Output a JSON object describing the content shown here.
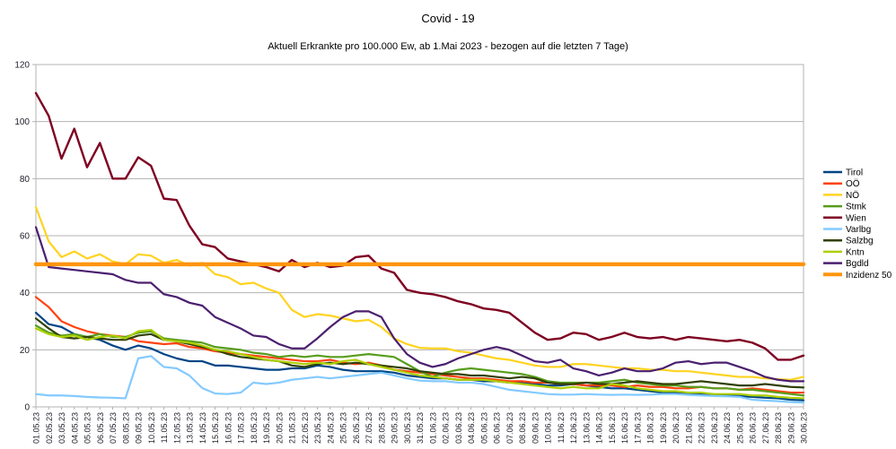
{
  "chart_data": {
    "type": "line",
    "title": "Covid - 19",
    "subtitle": "Aktuell Erkrankte pro 100.000 Ew, ab 1.Mai 2023 - bezogen auf die letzten 7 Tage)",
    "xlabel": "",
    "ylabel": "",
    "ylim": [
      0,
      120
    ],
    "ytick_step": 20,
    "ytick_labels": [
      "0",
      "20",
      "40",
      "60",
      "80",
      "100",
      "120"
    ],
    "grid": "horizontal",
    "legend_position": "right",
    "background_color": "#ffffff",
    "grid_color": "#b3b3b3",
    "axis_label_color": "#1c1c28",
    "inzidenz_line_value": 50,
    "categories": [
      "01.05.23",
      "02.05.23",
      "03.05.23",
      "04.05.23",
      "05.05.23",
      "06.05.23",
      "07.05.23",
      "08.05.23",
      "09.05.23",
      "10.05.23",
      "11.05.23",
      "12.05.23",
      "13.05.23",
      "14.05.23",
      "15.05.23",
      "16.05.23",
      "17.05.23",
      "18.05.23",
      "19.05.23",
      "20.05.23",
      "21.05.23",
      "22.05.23",
      "23.05.23",
      "24.05.23",
      "25.05.23",
      "26.05.23",
      "27.05.23",
      "28.05.23",
      "29.05.23",
      "30.05.23",
      "31.05.23",
      "01.06.23",
      "02.06.23",
      "03.06.23",
      "04.06.23",
      "05.06.23",
      "06.06.23",
      "07.06.23",
      "08.06.23",
      "09.06.23",
      "10.06.23",
      "11.06.23",
      "12.06.23",
      "13.06.23",
      "14.06.23",
      "15.06.23",
      "16.06.23",
      "17.06.23",
      "18.06.23",
      "19.06.23",
      "20.06.23",
      "21.06.23",
      "22.06.23",
      "23.06.23",
      "24.06.23",
      "25.06.23",
      "26.06.23",
      "27.06.23",
      "28.06.23",
      "29.06.23",
      "30.06.23"
    ],
    "series": [
      {
        "name": "Tirol",
        "color": "#004586",
        "width": 2.2,
        "values": [
          33,
          29,
          28,
          25.5,
          24.5,
          23.5,
          21.5,
          20,
          21.5,
          20.5,
          18.5,
          17,
          16,
          16,
          14.5,
          14.5,
          14,
          13.5,
          13,
          13,
          13.5,
          13.5,
          14.5,
          14,
          13,
          12.5,
          12.5,
          12.5,
          12,
          11,
          10.5,
          10,
          10,
          9.5,
          9.5,
          9,
          9,
          8.5,
          8.5,
          8,
          7.5,
          7.5,
          8,
          7.5,
          7,
          6.5,
          6.5,
          6,
          5.5,
          5,
          5,
          4.5,
          4.5,
          4,
          4,
          3.8,
          3.5,
          3.2,
          3,
          2.5,
          2.3
        ]
      },
      {
        "name": "OÖ",
        "color": "#ff420e",
        "width": 2.2,
        "values": [
          38.5,
          35,
          30,
          28,
          26.5,
          25.5,
          25,
          24.5,
          23,
          22.5,
          22,
          22.3,
          21,
          20.5,
          19.5,
          19,
          18.5,
          18,
          17.5,
          17,
          16.5,
          16,
          16,
          16.5,
          15.5,
          15,
          15.5,
          14.5,
          13,
          12.5,
          12,
          11.5,
          11,
          10.5,
          10,
          10,
          9.5,
          9,
          9,
          8.5,
          8.5,
          8,
          8,
          7.5,
          7.5,
          7.5,
          7,
          7.5,
          7,
          7,
          6.5,
          6.5,
          7,
          6.5,
          6.5,
          6,
          6.5,
          6,
          5.5,
          5,
          5
        ]
      },
      {
        "name": "NÖ",
        "color": "#ffd320",
        "width": 2.2,
        "values": [
          70,
          58,
          52.5,
          54.5,
          52,
          53.5,
          51,
          50,
          53.5,
          53,
          50.5,
          51.5,
          49.5,
          50.5,
          46.5,
          45.5,
          43,
          43.5,
          41.5,
          40,
          34,
          31.5,
          32.5,
          32,
          31,
          30,
          30.5,
          28,
          24,
          22,
          20.7,
          20.5,
          20.5,
          19.5,
          19,
          18,
          17,
          16.5,
          15.5,
          14.5,
          14,
          14,
          15,
          15,
          14.5,
          14,
          13.5,
          13.5,
          13,
          13,
          12.5,
          12.5,
          12,
          11.5,
          11,
          10.5,
          10.5,
          10,
          9.7,
          9.5,
          10.5
        ]
      },
      {
        "name": "Stmk",
        "color": "#579d1c",
        "width": 2.2,
        "values": [
          28.5,
          26,
          25,
          25.5,
          24.5,
          25.5,
          24.5,
          24.5,
          26,
          26.5,
          24,
          23.5,
          23,
          22.5,
          21,
          20.5,
          20,
          19,
          18.5,
          17.5,
          18,
          17.5,
          18,
          17.5,
          17.5,
          18,
          18.5,
          18,
          17.5,
          15,
          12.5,
          10.5,
          12,
          13,
          13.5,
          13,
          12.5,
          12,
          11.5,
          10.5,
          9,
          8.5,
          8.5,
          8.5,
          8.5,
          9,
          9.5,
          8.5,
          8,
          7.5,
          7.5,
          7,
          7,
          6.5,
          6.5,
          6,
          6,
          5.5,
          5,
          4.5,
          4
        ]
      },
      {
        "name": "Wien",
        "color": "#7e0021",
        "width": 2.4,
        "values": [
          110,
          102,
          87,
          97.5,
          84,
          92.5,
          80,
          80,
          87.5,
          84.5,
          73,
          72.5,
          63.5,
          57,
          56,
          52,
          51,
          50,
          49,
          47.5,
          51.5,
          49,
          50.5,
          49,
          49.5,
          52.5,
          53,
          48.5,
          47,
          41,
          40,
          39.5,
          38.5,
          37,
          36,
          34.5,
          34,
          33,
          29.5,
          26,
          23.5,
          24,
          26,
          25.5,
          23.5,
          24.5,
          26,
          24.5,
          24,
          24.5,
          23.5,
          24.5,
          24,
          23.5,
          23,
          23.5,
          22.5,
          20.5,
          16.5,
          16.5,
          18
        ]
      },
      {
        "name": "Varlbg",
        "color": "#83caff",
        "width": 2.2,
        "values": [
          4.5,
          4,
          4,
          3.8,
          3.5,
          3.3,
          3.2,
          3,
          17,
          17.8,
          14,
          13.5,
          11,
          6.6,
          4.7,
          4.5,
          5,
          8.5,
          8,
          8.5,
          9.5,
          10,
          10.5,
          10,
          10.5,
          11,
          11.5,
          12,
          11,
          10,
          9.2,
          9,
          9,
          8.5,
          8.5,
          8,
          7,
          6,
          5.5,
          5,
          4.5,
          4.3,
          4.3,
          4.5,
          4.3,
          4.2,
          4.3,
          4.2,
          4.3,
          4.5,
          4.5,
          4.2,
          4,
          3.8,
          3.7,
          3.5,
          2.5,
          2.2,
          2,
          1.7,
          1.5
        ]
      },
      {
        "name": "Salzbg",
        "color": "#314004",
        "width": 2.2,
        "values": [
          31,
          27.5,
          24.5,
          24,
          24.5,
          24,
          23.5,
          23.5,
          25,
          25.5,
          23.5,
          23,
          22,
          21,
          20,
          18.5,
          17.5,
          17,
          16.5,
          16,
          14.5,
          14,
          15,
          15.5,
          15,
          15.5,
          15,
          14.5,
          14,
          13.5,
          12.5,
          12,
          11.5,
          11.5,
          11,
          11,
          10.5,
          10,
          10.5,
          10,
          8.5,
          8,
          8,
          8.5,
          8,
          8,
          8.5,
          9,
          8.5,
          8,
          8,
          8.5,
          9,
          8.5,
          8,
          7.5,
          7.5,
          8,
          7.5,
          7,
          6.8
        ]
      },
      {
        "name": "Kntn",
        "color": "#aecf00",
        "width": 2.2,
        "values": [
          27.5,
          25.5,
          24.5,
          25,
          23.5,
          24.5,
          25,
          24,
          26.5,
          27,
          23.5,
          23,
          22.5,
          21.5,
          20,
          19.5,
          18.5,
          17.5,
          16.5,
          16,
          15.5,
          15,
          15.5,
          15,
          16,
          16.5,
          15,
          14,
          13,
          12,
          11,
          10.5,
          10,
          9.5,
          9.5,
          9.5,
          9,
          8.5,
          8,
          7.5,
          7,
          6.5,
          7,
          6.5,
          6.5,
          8,
          7.5,
          6.5,
          6,
          5.5,
          5.5,
          5,
          5,
          4.5,
          4.5,
          4.5,
          4,
          4,
          3.5,
          3.2,
          3
        ]
      },
      {
        "name": "Bgdld",
        "color": "#4b1f6f",
        "width": 2.2,
        "values": [
          63,
          49,
          48.5,
          48,
          47.5,
          47,
          46.5,
          44.5,
          43.5,
          43.5,
          39.5,
          38.5,
          36.5,
          35.5,
          31.5,
          29.5,
          27.5,
          25,
          24.5,
          22,
          20.5,
          20.5,
          24,
          28,
          31.5,
          33.5,
          33.5,
          31.5,
          24,
          18.5,
          15.5,
          14,
          15,
          17,
          18.5,
          20,
          21,
          20,
          18,
          16,
          15.5,
          16.5,
          13.5,
          12.5,
          11,
          12,
          13.5,
          12.5,
          12.5,
          13.5,
          15.5,
          16,
          15,
          15.5,
          15.5,
          14,
          12.5,
          10.5,
          9.5,
          9,
          9
        ]
      },
      {
        "name": "Inzidenz 50",
        "color": "#ff950e",
        "width": 4.5,
        "values": [
          50,
          50,
          50,
          50,
          50,
          50,
          50,
          50,
          50,
          50,
          50,
          50,
          50,
          50,
          50,
          50,
          50,
          50,
          50,
          50,
          50,
          50,
          50,
          50,
          50,
          50,
          50,
          50,
          50,
          50,
          50,
          50,
          50,
          50,
          50,
          50,
          50,
          50,
          50,
          50,
          50,
          50,
          50,
          50,
          50,
          50,
          50,
          50,
          50,
          50,
          50,
          50,
          50,
          50,
          50,
          50,
          50,
          50,
          50,
          50,
          50
        ]
      }
    ]
  }
}
